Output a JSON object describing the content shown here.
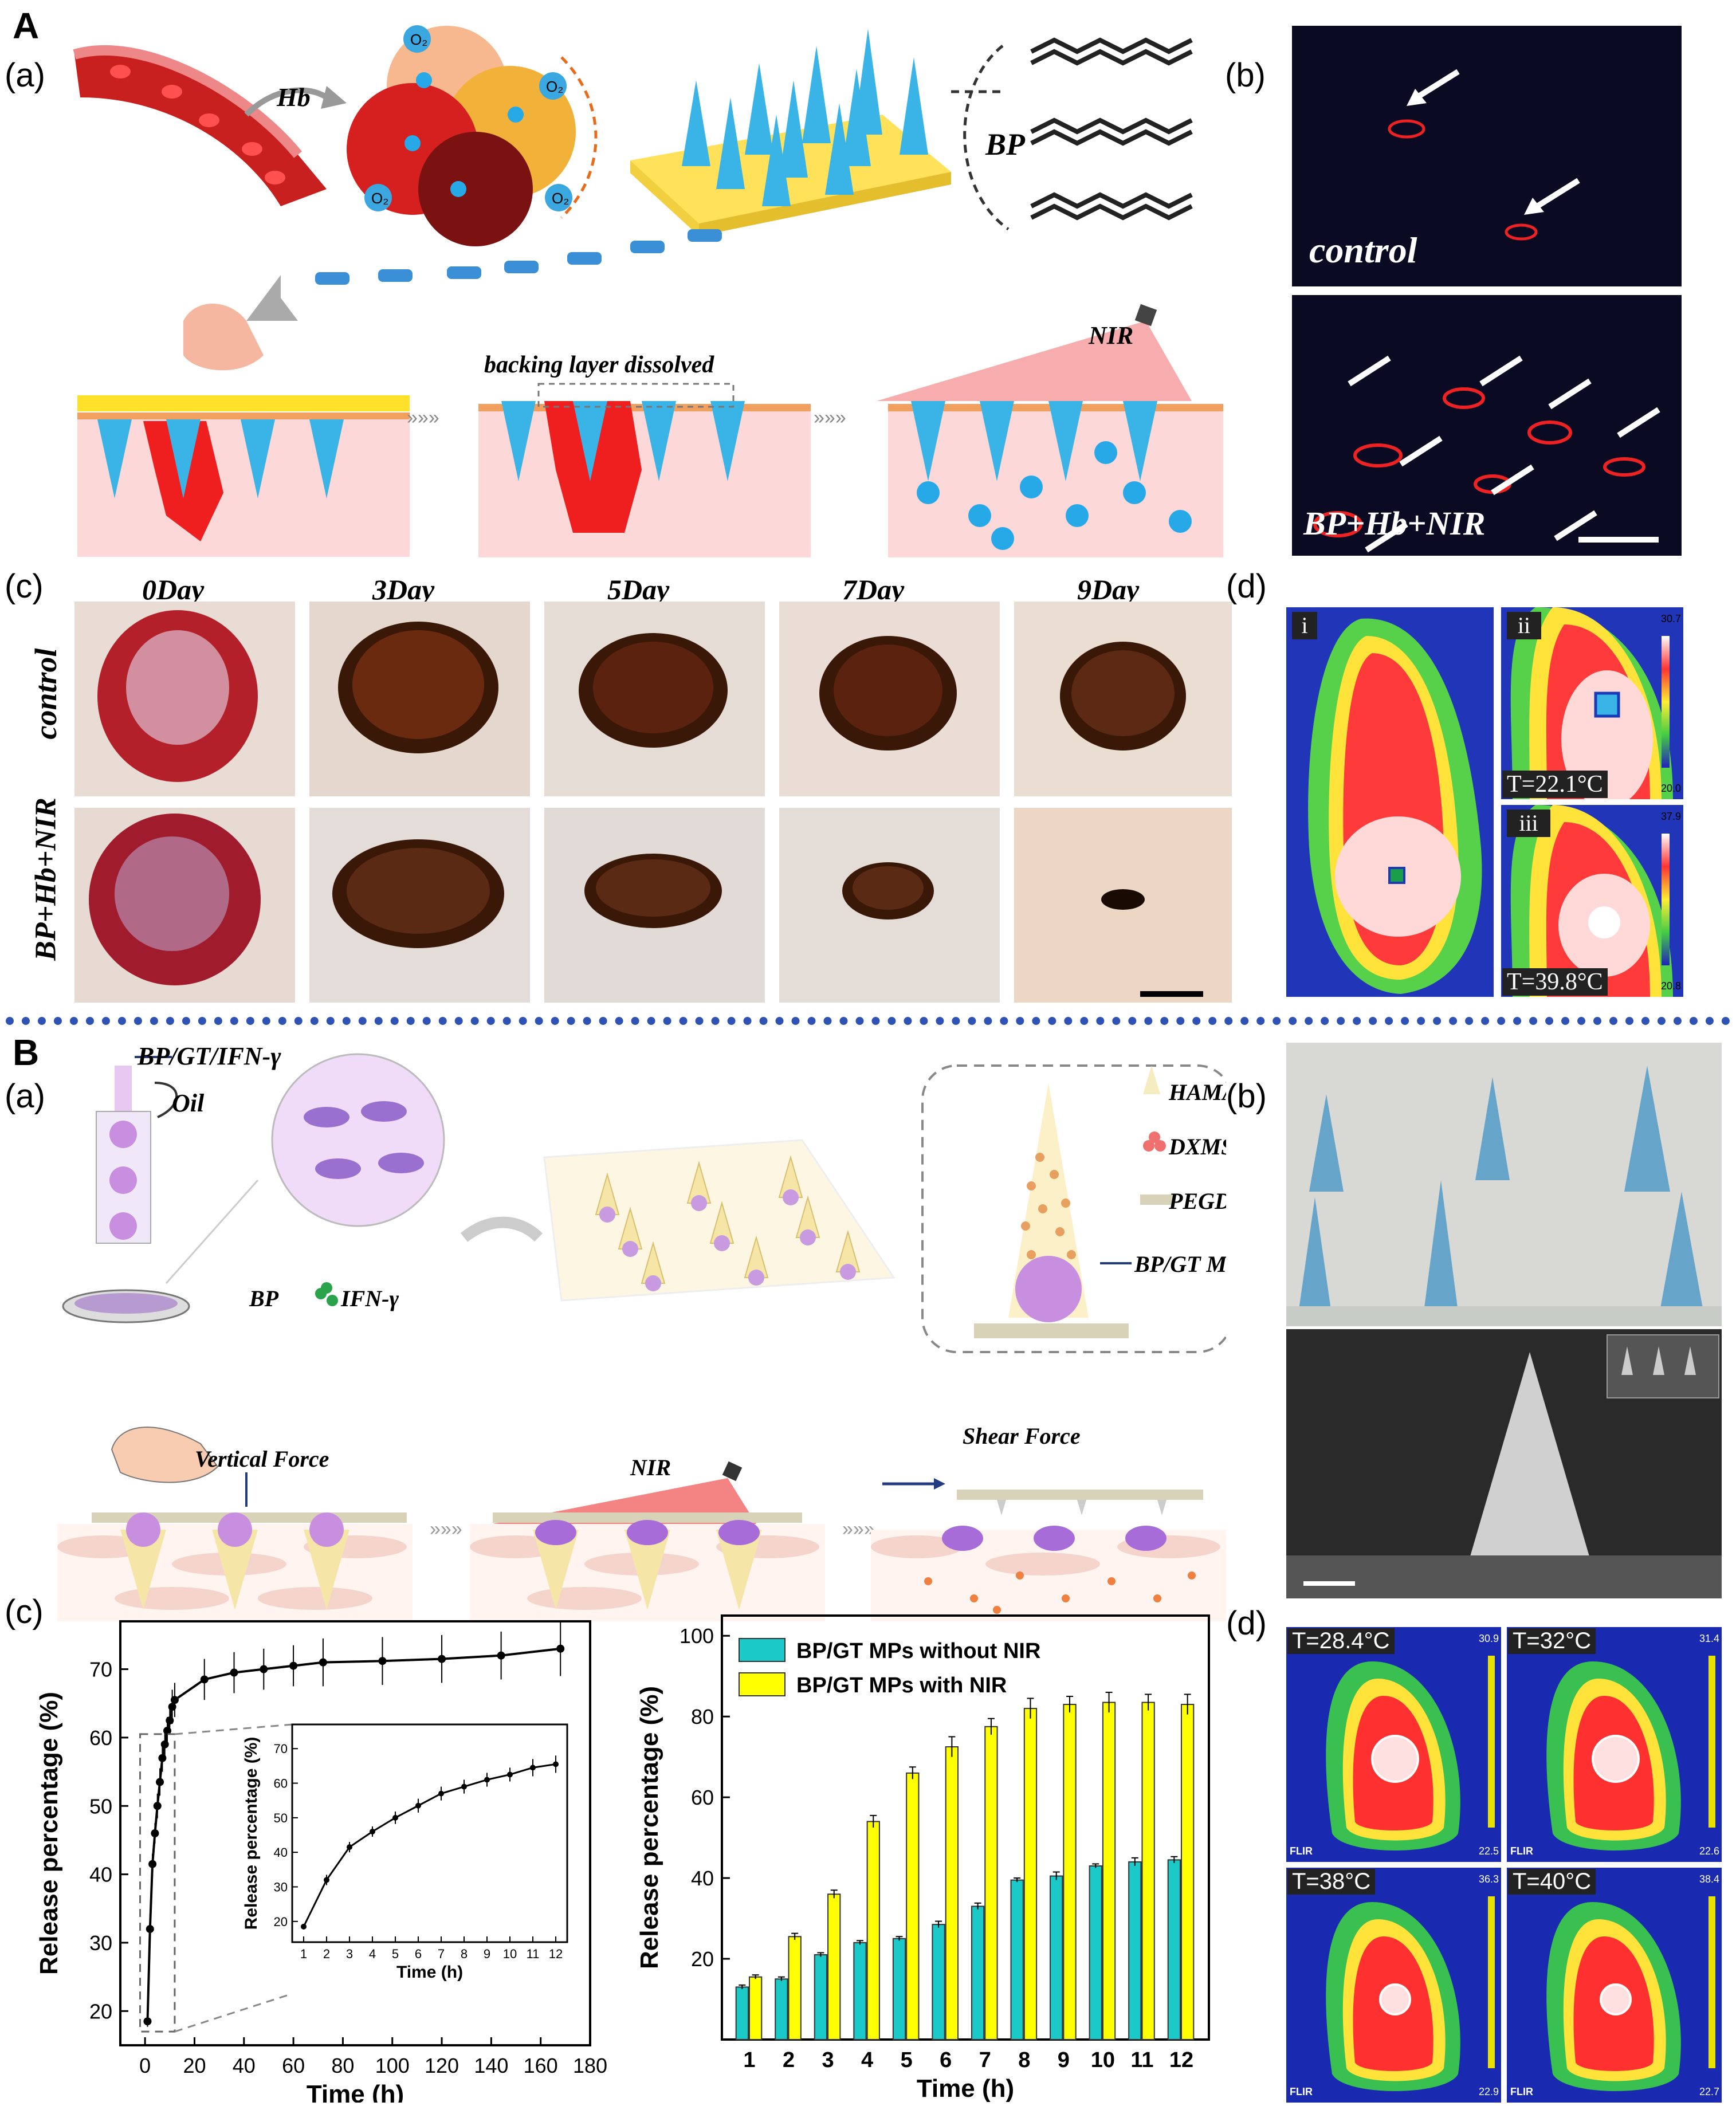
{
  "sectionA": {
    "letter": "A",
    "panel_a": {
      "label": "(a)",
      "hb": "Hb",
      "o2": "O",
      "o2_sub": "2",
      "bp": "BP",
      "backing": "backing layer dissolved",
      "nir": "NIR"
    },
    "panel_b": {
      "label": "(b)",
      "top": "control",
      "bottom": "BP+Hb+NIR"
    },
    "panel_c": {
      "label": "(c)",
      "days": [
        "0Day",
        "3Day",
        "5Day",
        "7Day",
        "9Day"
      ],
      "rows": [
        "control",
        "BP+Hb+NIR"
      ]
    },
    "panel_d": {
      "label": "(d)",
      "i": "i",
      "ii": "ii",
      "iii": "iii",
      "t_ii": "T=22.1°C",
      "t_iii": "T=39.8°C",
      "scale_ii_top": "30.7",
      "scale_ii_bottom": "20.0",
      "scale_iii_top": "37.9",
      "scale_iii_bottom": "20.8"
    }
  },
  "sectionB": {
    "letter": "B",
    "panel_a": {
      "label": "(a)",
      "bpgtifn": "BP/GT/IFN-γ",
      "oil": "Oil",
      "bp": "BP",
      "ifn": "IFN-γ",
      "legend": [
        "HAMA",
        "DXMS",
        "PEGDA",
        "BP/GT MPs"
      ],
      "vertical": "Vertical Force",
      "nir": "NIR",
      "shear": "Shear Force"
    },
    "panel_b": {
      "label": "(b)"
    },
    "panel_c": {
      "label": "(c)"
    },
    "panel_d": {
      "label": "(d)",
      "temps": [
        "T=28.4°C",
        "T=32°C",
        "T=38°C",
        "T=40°C"
      ],
      "scale_tops": [
        "30.9",
        "31.4",
        "36.3",
        "38.4"
      ],
      "scale_bottoms": [
        "22.5",
        "22.6",
        "22.9",
        "22.7"
      ],
      "brand": "FLIR"
    }
  },
  "chart_data": [
    {
      "type": "line",
      "xlabel": "Time (h)",
      "ylabel": "Release percentage (%)",
      "xlim": [
        -10,
        180
      ],
      "ylim": [
        15,
        77
      ],
      "xticks": [
        0,
        20,
        40,
        60,
        80,
        100,
        120,
        140,
        160,
        180
      ],
      "yticks": [
        20,
        30,
        40,
        50,
        60,
        70
      ],
      "series": [
        {
          "x": [
            1,
            2,
            3,
            4,
            5,
            6,
            7,
            8,
            9,
            10,
            11,
            12,
            24,
            36,
            48,
            60,
            72,
            96,
            120,
            144,
            168
          ],
          "y": [
            18.5,
            32,
            41.5,
            46,
            50,
            53.5,
            57,
            59,
            61,
            62.5,
            64.5,
            65.5,
            68.5,
            69.5,
            70,
            70.5,
            71,
            71.2,
            71.5,
            72,
            73
          ],
          "err": [
            0.8,
            1.5,
            1.5,
            1.5,
            1.8,
            2,
            2,
            2,
            2,
            2,
            2.5,
            2.5,
            3,
            3,
            3,
            3,
            3.5,
            3.5,
            3.5,
            3.5,
            4
          ]
        }
      ],
      "inset": {
        "xlabel": "Time (h)",
        "ylabel": "Release percentage (%)",
        "xlim": [
          0.5,
          12.5
        ],
        "ylim": [
          14,
          77
        ],
        "xticks": [
          1,
          2,
          3,
          4,
          5,
          6,
          7,
          8,
          9,
          10,
          11,
          12
        ],
        "yticks": [
          20,
          30,
          40,
          50,
          60,
          70
        ],
        "x": [
          1,
          2,
          3,
          4,
          5,
          6,
          7,
          8,
          9,
          10,
          11,
          12
        ],
        "y": [
          18.5,
          32,
          41.5,
          46,
          50,
          53.5,
          57,
          59,
          61,
          62.5,
          64.5,
          65.5
        ],
        "err": [
          0.8,
          1.5,
          1.5,
          1.5,
          1.8,
          2,
          2,
          2,
          2,
          2,
          2.5,
          2.5
        ]
      }
    },
    {
      "type": "bar",
      "xlabel": "Time (h)",
      "ylabel": "Release percentage (%)",
      "categories": [
        "1",
        "2",
        "3",
        "4",
        "5",
        "6",
        "7",
        "8",
        "9",
        "10",
        "11",
        "12"
      ],
      "ylim": [
        0,
        105
      ],
      "yticks": [
        20,
        40,
        60,
        80,
        100
      ],
      "legend_position": "top-left",
      "series": [
        {
          "name": "BP/GT MPs without NIR",
          "color": "#1cc9c9",
          "values": [
            13,
            15,
            21,
            24,
            25,
            28.5,
            33,
            39.5,
            40.5,
            43,
            44,
            44.5
          ],
          "err": [
            0.5,
            0.5,
            0.5,
            0.5,
            0.5,
            0.8,
            0.8,
            0.5,
            1,
            0.5,
            1,
            0.8
          ]
        },
        {
          "name": "BP/GT MPs with NIR",
          "color": "#ffff00",
          "values": [
            15.5,
            25.5,
            36,
            54,
            66,
            72.5,
            77.5,
            82,
            83,
            83.5,
            83.5,
            83
          ],
          "err": [
            0.5,
            0.8,
            1,
            1.5,
            1.5,
            2.5,
            2,
            2.5,
            2,
            2.5,
            2,
            2.5
          ]
        }
      ]
    }
  ]
}
